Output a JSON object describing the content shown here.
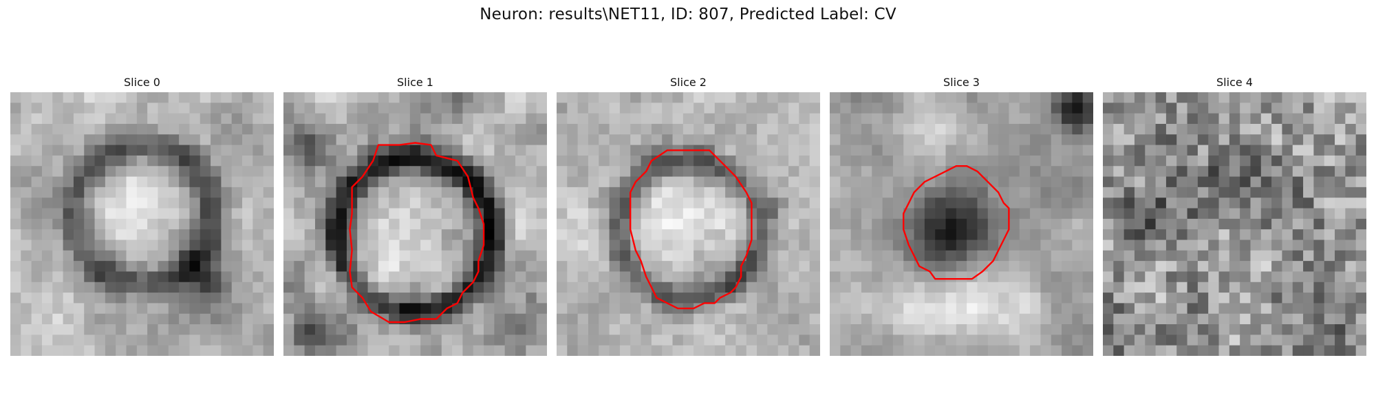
{
  "figure": {
    "title": "Neuron: results\\NET11, ID: 807, Predicted Label: CV"
  },
  "contour_color": "#ff0000",
  "colormap": "gray",
  "panels": [
    {
      "title": "Slice 0",
      "has_contour": false
    },
    {
      "title": "Slice 1",
      "has_contour": true
    },
    {
      "title": "Slice 2",
      "has_contour": true
    },
    {
      "title": "Slice 3",
      "has_contour": true
    },
    {
      "title": "Slice 4",
      "has_contour": false
    }
  ]
}
